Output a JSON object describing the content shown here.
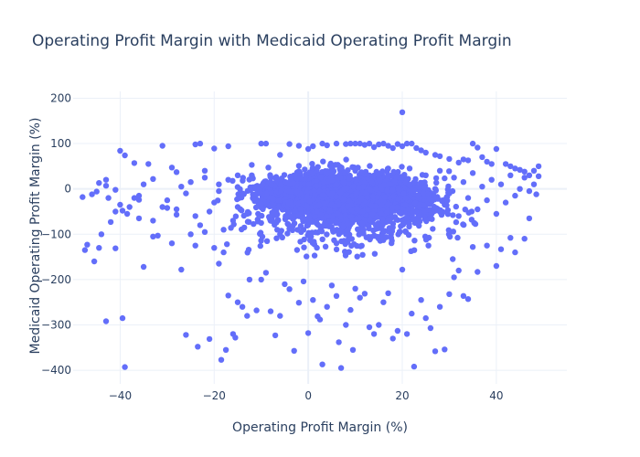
{
  "chart_data": {
    "type": "scatter",
    "title": "Operating Profit Margin with Medicaid Operating Profit Margin",
    "xlabel": "Operating Profit Margin (%)",
    "ylabel": "Medicaid Operating Profit Margin (%)",
    "xlim": [
      -50,
      55
    ],
    "ylim": [
      -430,
      215
    ],
    "x_ticks": [
      -40,
      -20,
      0,
      20,
      40
    ],
    "y_ticks": [
      200,
      100,
      0,
      -100,
      -200,
      -300,
      -400
    ],
    "grid": true,
    "legend": "none",
    "series": [
      {
        "color": "#636efa",
        "points": [
          [
            -47.5,
            -135
          ],
          [
            -47,
            -123
          ],
          [
            -45.5,
            -160
          ],
          [
            -44.5,
            -130
          ],
          [
            -44,
            -100
          ],
          [
            -43,
            -292
          ],
          [
            -42,
            -73
          ],
          [
            -41,
            -131
          ],
          [
            -39.5,
            -285
          ],
          [
            -39,
            -393
          ],
          [
            -41,
            -50
          ],
          [
            -39.5,
            -48
          ],
          [
            -38.5,
            -55
          ],
          [
            -36,
            -65
          ],
          [
            -35,
            -172
          ],
          [
            -33,
            -105
          ],
          [
            -32,
            -103
          ],
          [
            -30,
            -42
          ],
          [
            -29,
            -120
          ],
          [
            -28,
            -57
          ],
          [
            -27,
            -178
          ],
          [
            -26,
            -322
          ],
          [
            -25,
            -100
          ],
          [
            -24,
            -125
          ],
          [
            -23.5,
            -348
          ],
          [
            -22,
            -95
          ],
          [
            -21,
            -331
          ],
          [
            -20,
            -130
          ],
          [
            -19,
            -165
          ],
          [
            -18.5,
            -377
          ],
          [
            -18,
            -140
          ],
          [
            -17.5,
            -355
          ],
          [
            -17,
            -235
          ],
          [
            -16,
            -320
          ],
          [
            -15.5,
            -328
          ],
          [
            -15,
            -250
          ],
          [
            -14,
            -260
          ],
          [
            -13,
            -280
          ],
          [
            -12.5,
            -200
          ],
          [
            -11,
            -268
          ],
          [
            -10,
            -200
          ],
          [
            -9,
            -185
          ],
          [
            -8,
            -270
          ],
          [
            -7,
            -323
          ],
          [
            -6,
            -280
          ],
          [
            -5,
            -210
          ],
          [
            -4,
            -221
          ],
          [
            -3,
            -357
          ],
          [
            -2,
            -251
          ],
          [
            -1,
            -204
          ],
          [
            0,
            -318
          ],
          [
            1,
            -245
          ],
          [
            2,
            -281
          ],
          [
            2.5,
            -288
          ],
          [
            3,
            -387
          ],
          [
            4,
            -260
          ],
          [
            5,
            -213
          ],
          [
            6,
            -236
          ],
          [
            6.5,
            -338
          ],
          [
            7,
            -395
          ],
          [
            8,
            -300
          ],
          [
            9,
            -267
          ],
          [
            9.5,
            -355
          ],
          [
            10,
            -220
          ],
          [
            11,
            -240
          ],
          [
            12,
            -231
          ],
          [
            13,
            -305
          ],
          [
            14,
            -320
          ],
          [
            15,
            -300
          ],
          [
            16,
            -250
          ],
          [
            17,
            -230
          ],
          [
            18,
            -330
          ],
          [
            19,
            -313
          ],
          [
            20,
            -178
          ],
          [
            21,
            -320
          ],
          [
            22,
            -275
          ],
          [
            22.5,
            -392
          ],
          [
            24,
            -245
          ],
          [
            25,
            -285
          ],
          [
            26,
            -307
          ],
          [
            27,
            -358
          ],
          [
            28,
            -260
          ],
          [
            29,
            -354
          ],
          [
            30,
            -232
          ],
          [
            31,
            -195
          ],
          [
            32,
            -180
          ],
          [
            33,
            -236
          ],
          [
            34,
            -243
          ],
          [
            35,
            -128
          ],
          [
            36,
            -183
          ],
          [
            38,
            -125
          ],
          [
            40,
            -170
          ],
          [
            41,
            -133
          ],
          [
            43,
            -108
          ],
          [
            44,
            -140
          ],
          [
            46,
            -110
          ],
          [
            47,
            -65
          ],
          [
            -44.5,
            13
          ],
          [
            -43,
            20
          ],
          [
            -42.5,
            -20
          ],
          [
            -40,
            84
          ],
          [
            -39,
            74
          ],
          [
            -37,
            57
          ],
          [
            -36,
            -24
          ],
          [
            -34,
            55
          ],
          [
            -33,
            22
          ],
          [
            -31,
            95
          ],
          [
            -29,
            47
          ],
          [
            -28,
            37
          ],
          [
            -26,
            -10
          ],
          [
            -24,
            98
          ],
          [
            -23,
            100
          ],
          [
            -22,
            40
          ],
          [
            -20,
            89
          ],
          [
            -19,
            -5
          ],
          [
            -17,
            94
          ],
          [
            -15,
            30
          ],
          [
            -12,
            53
          ],
          [
            -10,
            100
          ],
          [
            -9,
            100
          ],
          [
            -6,
            75
          ],
          [
            -4,
            99
          ],
          [
            -2,
            95
          ],
          [
            0,
            88
          ],
          [
            1,
            94
          ],
          [
            3,
            100
          ],
          [
            4,
            96
          ],
          [
            6,
            100
          ],
          [
            8,
            99
          ],
          [
            9,
            100
          ],
          [
            10,
            100
          ],
          [
            11,
            100
          ],
          [
            12,
            97
          ],
          [
            13,
            100
          ],
          [
            14,
            92
          ],
          [
            15,
            98
          ],
          [
            16,
            100
          ],
          [
            17,
            95
          ],
          [
            18,
            90
          ],
          [
            19,
            99
          ],
          [
            20,
            94
          ],
          [
            20,
            169
          ],
          [
            21,
            100
          ],
          [
            22,
            100
          ],
          [
            23,
            90
          ],
          [
            24,
            85
          ],
          [
            25,
            80
          ],
          [
            27,
            75
          ],
          [
            28,
            72
          ],
          [
            30,
            66
          ],
          [
            32,
            58
          ],
          [
            33,
            65
          ],
          [
            34,
            63
          ],
          [
            35,
            100
          ],
          [
            36,
            91
          ],
          [
            37,
            70
          ],
          [
            38,
            60
          ],
          [
            39,
            55
          ],
          [
            40,
            88
          ],
          [
            42,
            55
          ],
          [
            43,
            50
          ],
          [
            44,
            45
          ],
          [
            45,
            42
          ],
          [
            46,
            38
          ],
          [
            47,
            30
          ],
          [
            48,
            40
          ],
          [
            49,
            50
          ],
          [
            49,
            28
          ],
          [
            -48,
            -18
          ],
          [
            -46,
            -12
          ],
          [
            -45,
            -6
          ],
          [
            -43,
            7
          ],
          [
            -41,
            -2
          ],
          [
            -40,
            -35
          ],
          [
            -38,
            -40
          ],
          [
            -37,
            -20
          ],
          [
            -36,
            -15
          ],
          [
            -35,
            10
          ],
          [
            -33,
            -70
          ],
          [
            -31,
            -40
          ],
          [
            -30,
            -25
          ],
          [
            -28,
            -45
          ],
          [
            -27,
            5
          ],
          [
            -25,
            15
          ],
          [
            -24,
            -60
          ],
          [
            -23,
            -80
          ],
          [
            -22,
            25
          ],
          [
            -21,
            -50
          ],
          [
            -20,
            -30
          ],
          [
            -19,
            10
          ],
          [
            -18,
            -90
          ],
          [
            -17,
            20
          ],
          [
            -16,
            -70
          ],
          [
            -15,
            -40
          ],
          [
            -14,
            -10
          ],
          [
            -13,
            -55
          ],
          [
            -12,
            30
          ],
          [
            -11,
            -25
          ],
          [
            -10,
            -75
          ],
          [
            -9,
            -15
          ],
          [
            -8,
            15
          ],
          [
            -7,
            -45
          ],
          [
            -6,
            -100
          ],
          [
            -5,
            5
          ],
          [
            -4,
            -60
          ],
          [
            -3,
            25
          ],
          [
            -2,
            -35
          ],
          [
            -1,
            -90
          ],
          [
            0,
            10
          ],
          [
            1,
            -55
          ],
          [
            2,
            -20
          ],
          [
            3,
            35
          ],
          [
            4,
            -80
          ],
          [
            5,
            0
          ],
          [
            6,
            -40
          ],
          [
            7,
            20
          ],
          [
            8,
            -70
          ],
          [
            9,
            -10
          ],
          [
            10,
            40
          ],
          [
            11,
            -50
          ],
          [
            12,
            -20
          ],
          [
            13,
            30
          ],
          [
            14,
            -65
          ],
          [
            15,
            5
          ],
          [
            16,
            -30
          ],
          [
            17,
            45
          ],
          [
            18,
            -85
          ],
          [
            19,
            -15
          ],
          [
            20,
            20
          ],
          [
            21,
            -45
          ],
          [
            22,
            10
          ],
          [
            23,
            -75
          ],
          [
            24,
            -5
          ],
          [
            25,
            30
          ],
          [
            26,
            -55
          ],
          [
            27,
            0
          ],
          [
            28,
            40
          ],
          [
            29,
            -35
          ],
          [
            30,
            -10
          ],
          [
            31,
            25
          ],
          [
            32,
            -60
          ],
          [
            33,
            15
          ],
          [
            34,
            -20
          ],
          [
            35,
            35
          ],
          [
            36,
            -45
          ],
          [
            37,
            5
          ],
          [
            38,
            -25
          ],
          [
            39,
            20
          ],
          [
            40,
            -55
          ],
          [
            41,
            10
          ],
          [
            42,
            -30
          ],
          [
            43,
            30
          ],
          [
            44,
            -15
          ],
          [
            45,
            0
          ],
          [
            46,
            25
          ],
          [
            47,
            -5
          ],
          [
            48,
            10
          ],
          [
            48.5,
            -12
          ]
        ]
      }
    ]
  }
}
